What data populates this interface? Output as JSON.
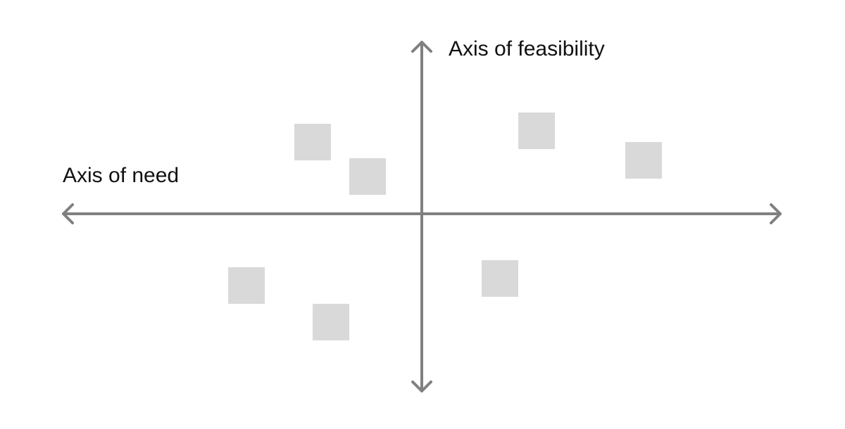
{
  "diagram": {
    "vertical_axis_label": "Axis of feasibility",
    "horizontal_axis_label": "Axis of need",
    "colors": {
      "axis": "#808080",
      "card": "#d9d9d9",
      "text": "#111111",
      "background": "#ffffff"
    },
    "cards": [
      {
        "quadrant": "top-left"
      },
      {
        "quadrant": "top-left"
      },
      {
        "quadrant": "top-right"
      },
      {
        "quadrant": "top-right"
      },
      {
        "quadrant": "bottom-left"
      },
      {
        "quadrant": "bottom-left"
      },
      {
        "quadrant": "bottom-right"
      }
    ]
  }
}
